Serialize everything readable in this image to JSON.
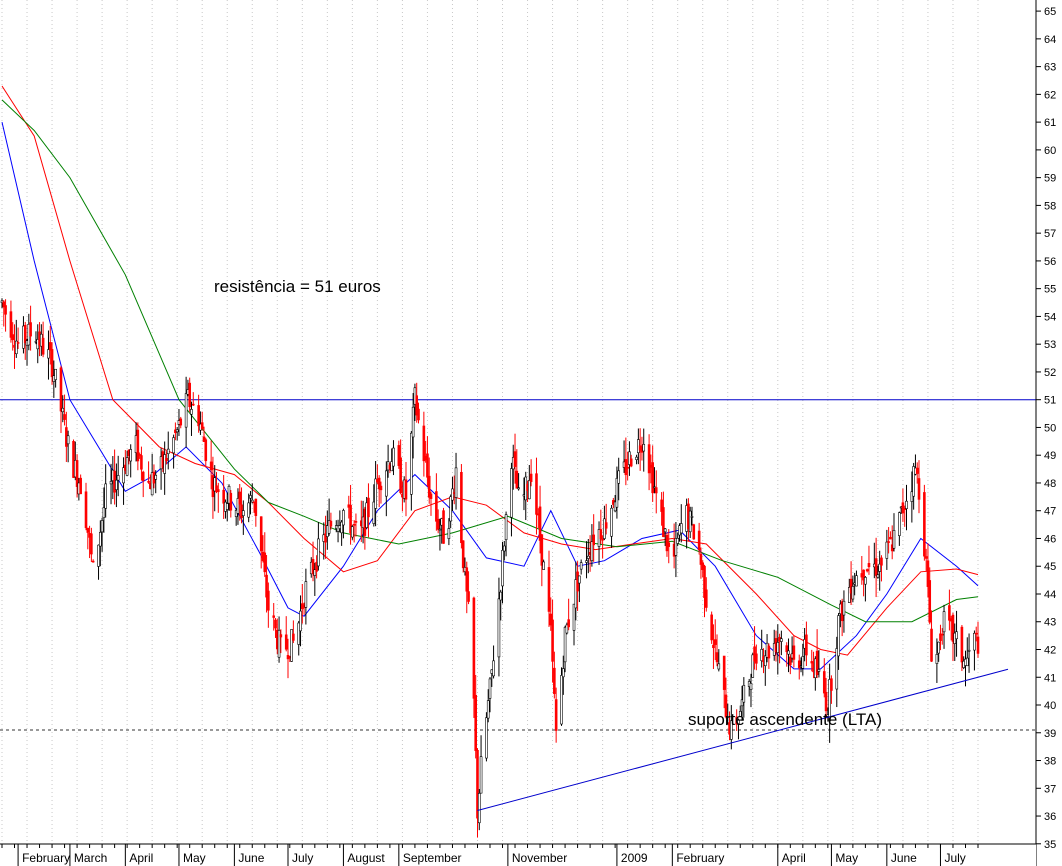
{
  "chart_data": {
    "type": "candlestick",
    "x_axis": {
      "months": [
        "February",
        "March",
        "April",
        "May",
        "June",
        "July",
        "August",
        "September",
        "November",
        "2009",
        "February",
        "April",
        "May",
        "June",
        "July"
      ],
      "start": "2008-01-23",
      "end": "2009-07-22"
    },
    "y_axis": {
      "side": "right",
      "ylim": [
        34.2,
        65.4
      ],
      "ticks": [
        35,
        36,
        37,
        38,
        39,
        40,
        41,
        42,
        43,
        44,
        45,
        46,
        47,
        48,
        49,
        50,
        51,
        52,
        53,
        54,
        55,
        56,
        57,
        58,
        59,
        60,
        61,
        62,
        63,
        64,
        65
      ]
    },
    "grid": "vertical dotted",
    "price_series": {
      "name": "",
      "color": "#ff0000",
      "points": [
        [
          "2008-01-23",
          54.5
        ],
        [
          "2008-02-01",
          53.0
        ],
        [
          "2008-02-10",
          53.5
        ],
        [
          "2008-02-20",
          52.3
        ],
        [
          "2008-03-01",
          49.0
        ],
        [
          "2008-03-08",
          47.8
        ],
        [
          "2008-03-14",
          44.8
        ],
        [
          "2008-03-21",
          47.5
        ],
        [
          "2008-04-01",
          48.8
        ],
        [
          "2008-04-07",
          49.3
        ],
        [
          "2008-04-14",
          48.0
        ],
        [
          "2008-04-21",
          48.5
        ],
        [
          "2008-05-01",
          50.0
        ],
        [
          "2008-05-06",
          51.0
        ],
        [
          "2008-05-12",
          50.4
        ],
        [
          "2008-05-20",
          48.0
        ],
        [
          "2008-05-28",
          47.5
        ],
        [
          "2008-06-05",
          47.0
        ],
        [
          "2008-06-12",
          47.5
        ],
        [
          "2008-06-20",
          43.5
        ],
        [
          "2008-06-27",
          42.0
        ],
        [
          "2008-07-05",
          42.3
        ],
        [
          "2008-07-10",
          44.0
        ],
        [
          "2008-07-18",
          45.5
        ],
        [
          "2008-07-25",
          46.5
        ],
        [
          "2008-08-01",
          47.0
        ],
        [
          "2008-08-10",
          46.0
        ],
        [
          "2008-08-20",
          48.0
        ],
        [
          "2008-08-28",
          49.0
        ],
        [
          "2008-09-05",
          47.5
        ],
        [
          "2008-09-10",
          51.0
        ],
        [
          "2008-09-15",
          49.0
        ],
        [
          "2008-09-20",
          47.0
        ],
        [
          "2008-09-27",
          46.0
        ],
        [
          "2008-10-03",
          48.5
        ],
        [
          "2008-10-08",
          44.5
        ],
        [
          "2008-10-12",
          42.0
        ],
        [
          "2008-10-15",
          36.2
        ],
        [
          "2008-10-18",
          38.5
        ],
        [
          "2008-10-22",
          40.5
        ],
        [
          "2008-10-28",
          44.5
        ],
        [
          "2008-11-03",
          49.0
        ],
        [
          "2008-11-08",
          47.0
        ],
        [
          "2008-11-14",
          48.5
        ],
        [
          "2008-11-20",
          45.5
        ],
        [
          "2008-11-25",
          42.5
        ],
        [
          "2008-11-28",
          39.0
        ],
        [
          "2008-12-03",
          42.5
        ],
        [
          "2008-12-10",
          44.5
        ],
        [
          "2008-12-18",
          46.0
        ],
        [
          "2008-12-25",
          46.5
        ],
        [
          "2009-01-02",
          48.0
        ],
        [
          "2009-01-09",
          49.0
        ],
        [
          "2009-01-16",
          49.7
        ],
        [
          "2009-01-23",
          47.5
        ],
        [
          "2009-02-01",
          45.0
        ],
        [
          "2009-02-08",
          47.0
        ],
        [
          "2009-02-15",
          46.0
        ],
        [
          "2009-02-22",
          43.0
        ],
        [
          "2009-03-01",
          40.5
        ],
        [
          "2009-03-06",
          39.0
        ],
        [
          "2009-03-12",
          40.0
        ],
        [
          "2009-03-20",
          42.0
        ],
        [
          "2009-03-27",
          42.0
        ],
        [
          "2009-04-03",
          42.5
        ],
        [
          "2009-04-10",
          41.5
        ],
        [
          "2009-04-17",
          42.0
        ],
        [
          "2009-04-24",
          41.0
        ],
        [
          "2009-04-29",
          40.0
        ],
        [
          "2009-05-05",
          43.0
        ],
        [
          "2009-05-12",
          44.5
        ],
        [
          "2009-05-20",
          45.0
        ],
        [
          "2009-05-28",
          45.0
        ],
        [
          "2009-06-05",
          46.0
        ],
        [
          "2009-06-12",
          47.5
        ],
        [
          "2009-06-17",
          48.5
        ],
        [
          "2009-06-20",
          47.5
        ],
        [
          "2009-06-23",
          45.0
        ],
        [
          "2009-06-27",
          41.0
        ],
        [
          "2009-07-02",
          43.0
        ],
        [
          "2009-07-08",
          42.5
        ],
        [
          "2009-07-15",
          41.5
        ],
        [
          "2009-07-20",
          42.3
        ]
      ]
    },
    "moving_averages": [
      {
        "name": "",
        "color": "#0000ff",
        "points": [
          [
            "2008-01-23",
            61.0
          ],
          [
            "2008-02-10",
            56.0
          ],
          [
            "2008-03-01",
            51.0
          ],
          [
            "2008-04-01",
            47.7
          ],
          [
            "2008-04-15",
            48.2
          ],
          [
            "2008-05-05",
            49.3
          ],
          [
            "2008-05-25",
            48.0
          ],
          [
            "2008-06-15",
            45.5
          ],
          [
            "2008-07-01",
            43.5
          ],
          [
            "2008-07-10",
            43.2
          ],
          [
            "2008-08-01",
            45.0
          ],
          [
            "2008-08-20",
            47.0
          ],
          [
            "2008-09-10",
            48.3
          ],
          [
            "2008-10-01",
            47.0
          ],
          [
            "2008-10-20",
            45.3
          ],
          [
            "2008-11-10",
            45.0
          ],
          [
            "2008-11-25",
            47.0
          ],
          [
            "2008-12-10",
            45.0
          ],
          [
            "2008-12-25",
            45.2
          ],
          [
            "2009-01-15",
            46.0
          ],
          [
            "2009-02-05",
            46.3
          ],
          [
            "2009-02-25",
            45.0
          ],
          [
            "2009-03-20",
            42.5
          ],
          [
            "2009-04-10",
            41.3
          ],
          [
            "2009-04-25",
            41.3
          ],
          [
            "2009-05-15",
            42.5
          ],
          [
            "2009-06-01",
            44.0
          ],
          [
            "2009-06-20",
            46.0
          ],
          [
            "2009-07-10",
            45.0
          ],
          [
            "2009-07-22",
            44.3
          ]
        ]
      },
      {
        "name": "",
        "color": "#ff0000",
        "points": [
          [
            "2008-01-23",
            62.3
          ],
          [
            "2008-02-10",
            60.5
          ],
          [
            "2008-03-01",
            56.0
          ],
          [
            "2008-03-25",
            51.0
          ],
          [
            "2008-04-20",
            49.3
          ],
          [
            "2008-05-10",
            48.7
          ],
          [
            "2008-06-01",
            48.3
          ],
          [
            "2008-06-20",
            47.3
          ],
          [
            "2008-07-10",
            46.0
          ],
          [
            "2008-08-01",
            44.8
          ],
          [
            "2008-08-20",
            45.2
          ],
          [
            "2008-09-10",
            47.0
          ],
          [
            "2008-10-01",
            47.5
          ],
          [
            "2008-10-20",
            47.2
          ],
          [
            "2008-11-10",
            46.2
          ],
          [
            "2008-12-01",
            45.8
          ],
          [
            "2008-12-20",
            45.6
          ],
          [
            "2009-01-10",
            45.8
          ],
          [
            "2009-02-01",
            46.0
          ],
          [
            "2009-02-20",
            45.8
          ],
          [
            "2009-03-20",
            44.0
          ],
          [
            "2009-04-10",
            42.5
          ],
          [
            "2009-04-25",
            42.0
          ],
          [
            "2009-05-10",
            41.8
          ],
          [
            "2009-06-01",
            43.5
          ],
          [
            "2009-06-20",
            44.8
          ],
          [
            "2009-07-10",
            44.9
          ],
          [
            "2009-07-22",
            44.7
          ]
        ]
      },
      {
        "name": "",
        "color": "#008000",
        "points": [
          [
            "2008-01-23",
            61.8
          ],
          [
            "2008-02-10",
            60.7
          ],
          [
            "2008-03-01",
            59.0
          ],
          [
            "2008-04-01",
            55.5
          ],
          [
            "2008-05-01",
            51.0
          ],
          [
            "2008-06-01",
            48.5
          ],
          [
            "2008-06-20",
            47.3
          ],
          [
            "2008-07-10",
            46.8
          ],
          [
            "2008-08-01",
            46.2
          ],
          [
            "2008-09-01",
            45.8
          ],
          [
            "2008-10-01",
            46.2
          ],
          [
            "2008-11-01",
            46.8
          ],
          [
            "2008-12-01",
            46.0
          ],
          [
            "2009-01-01",
            45.7
          ],
          [
            "2009-02-01",
            45.9
          ],
          [
            "2009-03-01",
            45.2
          ],
          [
            "2009-04-01",
            44.6
          ],
          [
            "2009-05-01",
            43.6
          ],
          [
            "2009-05-20",
            43.0
          ],
          [
            "2009-06-15",
            43.0
          ],
          [
            "2009-07-10",
            43.8
          ],
          [
            "2009-07-22",
            43.9
          ]
        ]
      }
    ],
    "annotations": [
      {
        "kind": "horizontal_line",
        "value": 51,
        "style": "solid",
        "color": "#0000cc"
      },
      {
        "kind": "horizontal_line",
        "value": 39.1,
        "style": "dashed",
        "color": "#333333"
      },
      {
        "kind": "trend_line",
        "from": [
          "2008-10-15",
          36.2
        ],
        "to": [
          "2009-07-22",
          41.0
        ],
        "color": "#0000cc"
      }
    ],
    "labels": {
      "resistance": "resistência = 51 euros",
      "support": "suporte ascendente (LTA)"
    }
  }
}
